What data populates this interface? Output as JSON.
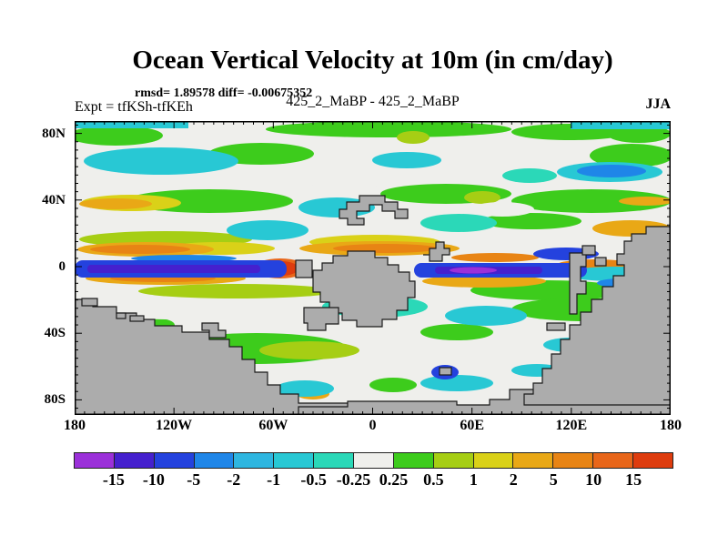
{
  "header": {
    "title": "Ocean Vertical Velocity at 10m (in cm/day)",
    "stats": "rmsd= 1.89578 diff= -0.00675352",
    "experiment": "Expt = tfKSh-tfKEh",
    "comparison": "425_2_MaBP - 425_2_MaBP",
    "season": "JJA"
  },
  "chart_data": {
    "type": "heatmap",
    "title": "Ocean Vertical Velocity at 10m (in cm/day)",
    "variable": "ocean vertical velocity difference",
    "units": "cm/day",
    "depth": "10m",
    "season": "JJA",
    "experiment": "tfKSh-tfKEh",
    "comparison": "425_2_MaBP - 425_2_MaBP",
    "rmsd": 1.89578,
    "diff": -0.00675352,
    "x_axis": {
      "ticks": [
        "180",
        "120W",
        "60W",
        "0",
        "60E",
        "120E",
        "180"
      ],
      "range_deg_lon": [
        -180,
        180
      ],
      "minor_tick_deg": 6
    },
    "y_axis": {
      "ticks": [
        {
          "label": "80N",
          "lat": 80
        },
        {
          "label": "40N",
          "lat": 40
        },
        {
          "label": "0",
          "lat": 0
        },
        {
          "label": "40S",
          "lat": -40
        },
        {
          "label": "80S",
          "lat": -80
        }
      ],
      "range_deg_lat": [
        -88,
        88
      ],
      "minor_tick_deg": 5
    },
    "colorbar": {
      "levels": [
        -15,
        -10,
        -5,
        -2,
        -1,
        -0.5,
        -0.25,
        0.25,
        0.5,
        1,
        2,
        5,
        10,
        15
      ],
      "labels": [
        "-15",
        "-10",
        "-5",
        "-2",
        "-1",
        "-0.5",
        "-0.25",
        "0.25",
        "0.5",
        "1",
        "2",
        "5",
        "10",
        "15"
      ],
      "colors": [
        "#9B30D9",
        "#4520CE",
        "#2442DE",
        "#1F86E8",
        "#2EB6E0",
        "#28C8D4",
        "#2BD8B8",
        "#EFEFEC",
        "#3DCC1C",
        "#A6CE14",
        "#DAD118",
        "#E9A816",
        "#E88414",
        "#E8661A",
        "#DE3C0E"
      ]
    },
    "land_color": "#ACACAC",
    "ocean_neutral_color": "#EFEFEC",
    "legend_position": "bottom"
  }
}
